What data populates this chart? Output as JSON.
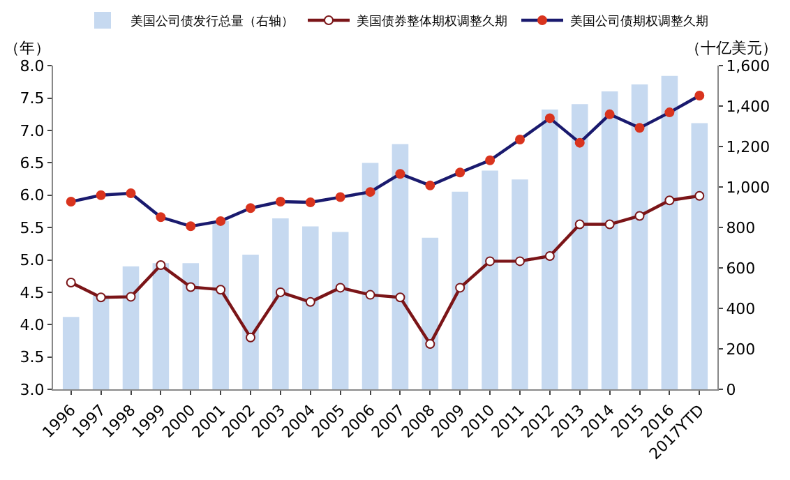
{
  "chart_data": {
    "type": "bar",
    "ylabel": "（年）",
    "y2label": "（十亿美元）",
    "categories": [
      "1996",
      "1997",
      "1998",
      "1999",
      "2000",
      "2001",
      "2002",
      "2003",
      "2004",
      "2005",
      "2006",
      "2007",
      "2008",
      "2009",
      "2010",
      "2011",
      "2012",
      "2013",
      "2014",
      "2015",
      "2016",
      "2017YTD"
    ],
    "series": [
      {
        "name": "美国公司债发行总量（右轴）",
        "axis": "y2",
        "color": "#c6d9f0",
        "values": [
          358,
          465,
          608,
          624,
          624,
          832,
          666,
          845,
          806,
          778,
          1120,
          1213,
          750,
          977,
          1082,
          1038,
          1384,
          1410,
          1473,
          1508,
          1550,
          1316
        ]
      },
      {
        "name": "美国债券整体期权调整久期",
        "type": "line",
        "color": "#7b1518",
        "marker": "circle",
        "values": [
          4.65,
          4.42,
          4.43,
          4.92,
          4.58,
          4.54,
          3.8,
          4.5,
          4.35,
          4.57,
          4.46,
          4.42,
          3.7,
          4.57,
          4.98,
          4.98,
          5.06,
          5.55,
          5.55,
          5.68,
          5.92,
          5.99
        ]
      },
      {
        "name": "美国公司债期权调整久期",
        "type": "line",
        "color": "#1a1a6e",
        "marker": "circle",
        "values": [
          5.9,
          6.0,
          6.03,
          5.66,
          5.52,
          5.6,
          5.8,
          5.9,
          5.89,
          5.97,
          6.05,
          6.33,
          6.15,
          6.35,
          6.54,
          6.86,
          7.19,
          6.81,
          7.25,
          7.04,
          7.28,
          7.54
        ]
      }
    ],
    "ylim": [
      3.0,
      8.0
    ],
    "yticks": [
      {
        "value": 3,
        "label": "3.0"
      },
      {
        "value": 3.5,
        "label": "3.5"
      },
      {
        "value": 4,
        "label": "4.0"
      },
      {
        "value": 4.5,
        "label": "4.5"
      },
      {
        "value": 5,
        "label": "5.0"
      },
      {
        "value": 5.5,
        "label": "5.5"
      },
      {
        "value": 6,
        "label": "6.0"
      },
      {
        "value": 6.5,
        "label": "6.5"
      },
      {
        "value": 7,
        "label": "7.0"
      },
      {
        "value": 7.5,
        "label": "7.5"
      },
      {
        "value": 8,
        "label": "8.0"
      }
    ],
    "y2lim": [
      0,
      1600
    ],
    "y2ticks": [
      0,
      200,
      400,
      600,
      800,
      {
        "value": 1000,
        "label": "1,000"
      },
      {
        "value": 1200,
        "label": "1,200"
      },
      {
        "value": 1400,
        "label": "1,400"
      },
      {
        "value": 1600,
        "label": "1,600"
      }
    ],
    "legend": "top"
  }
}
